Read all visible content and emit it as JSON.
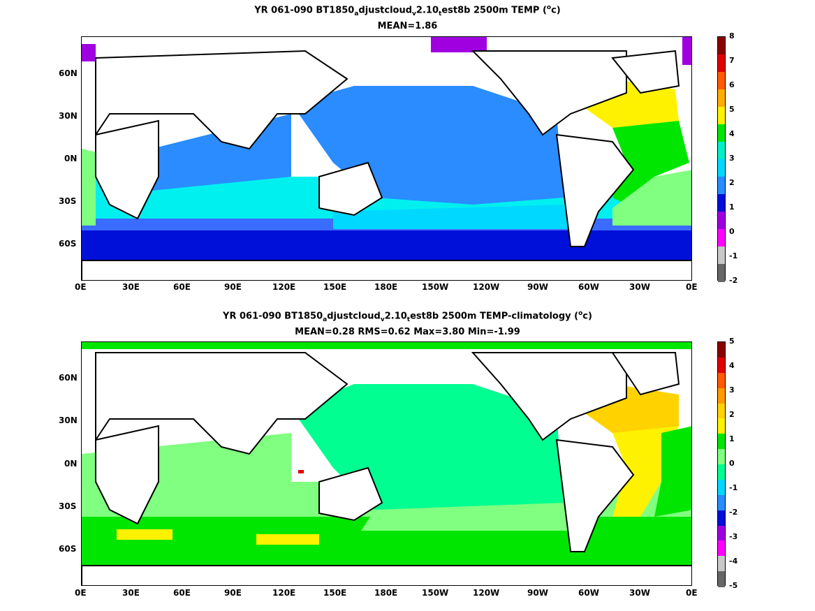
{
  "panels": [
    {
      "title_line1_parts": [
        "YR 061-090 BT1850",
        "a",
        "djustcloud",
        "v",
        "2.10",
        "t",
        "est8b 2500m TEMP (",
        "o",
        "c)"
      ],
      "title_line2": "MEAN=1.86",
      "colorbar": {
        "labels": [
          "8",
          "7",
          "6",
          "5",
          "4",
          "3",
          "2",
          "1",
          "0",
          "-1",
          "-2"
        ],
        "colors": [
          "#8b0000",
          "#e00000",
          "#ff5a00",
          "#ffae00",
          "#fff200",
          "#00e600",
          "#00f0c8",
          "#00d8ff",
          "#2a8cff",
          "#0010d8",
          "#a000e0",
          "#ff00ff",
          "#c8c8c8",
          "#666666"
        ]
      }
    },
    {
      "title_line1_parts": [
        "YR 061-090 BT1850",
        "a",
        "djustcloud",
        "v",
        "2.10",
        "t",
        "est8b 2500m TEMP-climatology (",
        "o",
        "c)"
      ],
      "title_line2": "MEAN=0.28   RMS=0.62   Max=3.80   Min=-1.99",
      "colorbar": {
        "labels": [
          "5",
          "4",
          "3",
          "2",
          "1",
          "0",
          "-1",
          "-2",
          "-3",
          "-4",
          "-5"
        ],
        "colors": [
          "#8b0000",
          "#e00000",
          "#ff5a00",
          "#ff9a00",
          "#ffd200",
          "#fff200",
          "#00e600",
          "#80ff80",
          "#00ff90",
          "#00d8ff",
          "#2a8cff",
          "#0010d8",
          "#a000e0",
          "#ff00ff",
          "#c8c8c8",
          "#666666"
        ]
      }
    }
  ],
  "x_ticks": [
    "0E",
    "30E",
    "60E",
    "90E",
    "120E",
    "150E",
    "180E",
    "150W",
    "120W",
    "90W",
    "60W",
    "30W",
    "0E"
  ],
  "y_ticks": [
    "60N",
    "30N",
    "0N",
    "30S",
    "60S"
  ]
}
